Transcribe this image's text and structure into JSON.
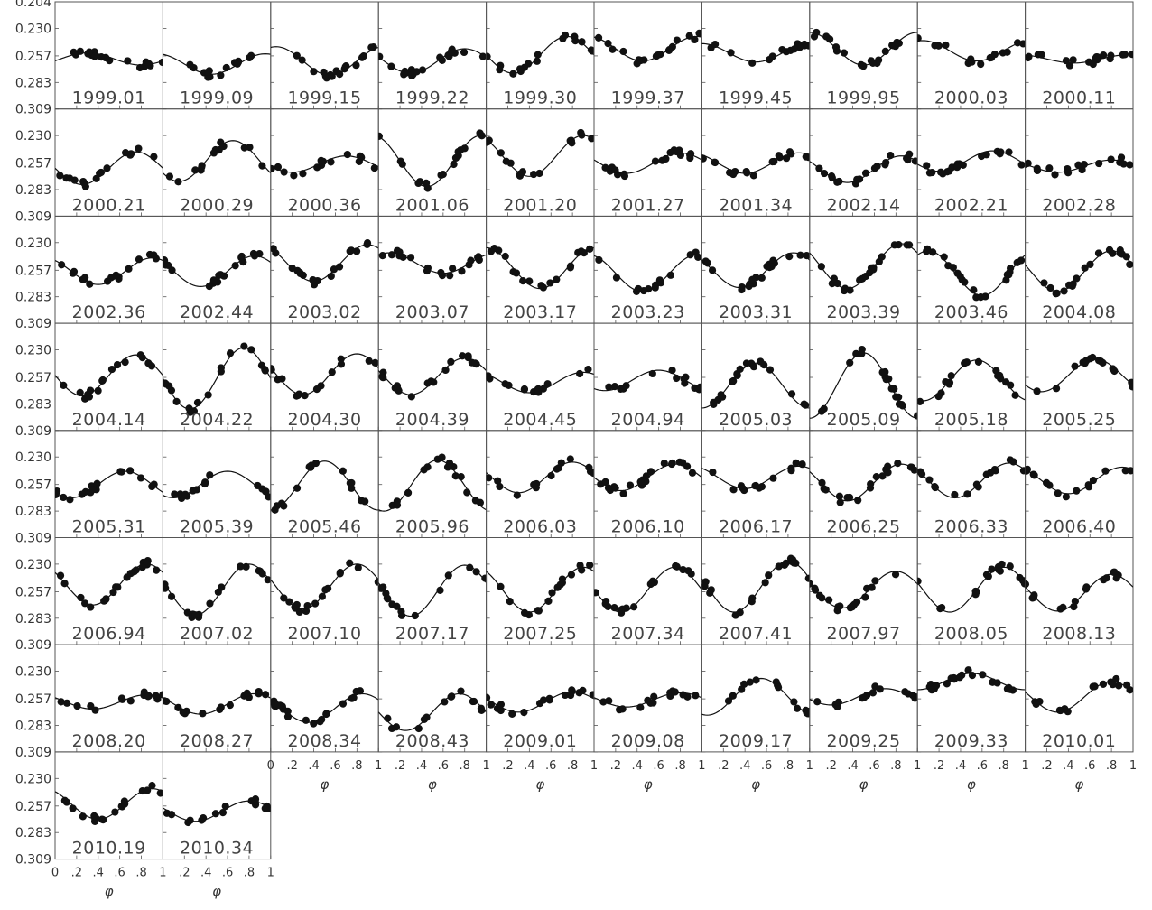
{
  "chart_data": {
    "type": "scatter",
    "layout": {
      "rows": 8,
      "columns": 10
    },
    "xlabel": "φ",
    "xlim": [
      0,
      1
    ],
    "ylim": [
      0.309,
      0.204
    ],
    "y_inverted": true,
    "y_ticks": [
      "0.204",
      "0.230",
      "0.257",
      "0.283",
      "0.309"
    ],
    "x_ticks": [
      "0",
      ".2",
      ".4",
      ".6",
      ".8",
      "1"
    ],
    "marker": "filled-circle",
    "fit_curve": "solid-line",
    "epochs": [
      "1999.01",
      "1999.09",
      "1999.15",
      "1999.22",
      "1999.30",
      "1999.37",
      "1999.45",
      "1999.95",
      "2000.03",
      "2000.11",
      "2000.21",
      "2000.29",
      "2000.36",
      "2001.06",
      "2001.20",
      "2001.27",
      "2001.34",
      "2002.14",
      "2002.21",
      "2002.28",
      "2002.36",
      "2002.44",
      "2003.02",
      "2003.07",
      "2003.17",
      "2003.23",
      "2003.31",
      "2003.39",
      "2003.46",
      "2004.08",
      "2004.14",
      "2004.22",
      "2004.30",
      "2004.39",
      "2004.45",
      "2004.94",
      "2005.03",
      "2005.09",
      "2005.18",
      "2005.25",
      "2005.31",
      "2005.39",
      "2005.46",
      "2005.96",
      "2006.03",
      "2006.10",
      "2006.17",
      "2006.25",
      "2006.33",
      "2006.40",
      "2006.94",
      "2007.02",
      "2007.10",
      "2007.17",
      "2007.25",
      "2007.34",
      "2007.41",
      "2007.97",
      "2008.05",
      "2008.13",
      "2008.20",
      "2008.27",
      "2008.34",
      "2008.43",
      "2009.01",
      "2009.08",
      "2009.17",
      "2009.25",
      "2009.33",
      "2010.01",
      "2010.19",
      "2010.34"
    ],
    "curves": [
      [
        0.26,
        0.006,
        0.8
      ],
      [
        0.265,
        0.01,
        0.45
      ],
      [
        0.262,
        0.014,
        0.55
      ],
      [
        0.262,
        0.012,
        0.3
      ],
      [
        0.256,
        0.018,
        0.25
      ],
      [
        0.25,
        0.012,
        0.45
      ],
      [
        0.254,
        0.009,
        0.5
      ],
      [
        0.25,
        0.016,
        0.5
      ],
      [
        0.252,
        0.01,
        0.55
      ],
      [
        0.26,
        0.004,
        0.45
      ],
      [
        0.262,
        0.016,
        0.25
      ],
      [
        0.255,
        0.02,
        0.15
      ],
      [
        0.258,
        0.008,
        0.2
      ],
      [
        0.255,
        0.025,
        0.45
      ],
      [
        0.25,
        0.02,
        0.4
      ],
      [
        0.257,
        0.01,
        0.3
      ],
      [
        0.257,
        0.01,
        0.4
      ],
      [
        0.263,
        0.013,
        0.35
      ],
      [
        0.255,
        0.01,
        0.2
      ],
      [
        0.26,
        0.006,
        0.3
      ],
      [
        0.258,
        0.013,
        0.4
      ],
      [
        0.258,
        0.015,
        0.35
      ],
      [
        0.25,
        0.018,
        0.4
      ],
      [
        0.25,
        0.01,
        0.6
      ],
      [
        0.255,
        0.02,
        0.5
      ],
      [
        0.26,
        0.018,
        0.45
      ],
      [
        0.257,
        0.017,
        0.35
      ],
      [
        0.253,
        0.022,
        0.35
      ],
      [
        0.26,
        0.022,
        0.6
      ],
      [
        0.258,
        0.02,
        0.3
      ],
      [
        0.255,
        0.02,
        0.25
      ],
      [
        0.258,
        0.03,
        0.25
      ],
      [
        0.254,
        0.02,
        0.3
      ],
      [
        0.256,
        0.018,
        0.3
      ],
      [
        0.262,
        0.01,
        0.4
      ],
      [
        0.26,
        0.01,
        0.1
      ],
      [
        0.265,
        0.022,
        0.0
      ],
      [
        0.265,
        0.032,
        0.0
      ],
      [
        0.26,
        0.02,
        0.05
      ],
      [
        0.255,
        0.016,
        0.15
      ],
      [
        0.257,
        0.013,
        0.15
      ],
      [
        0.257,
        0.013,
        0.1
      ],
      [
        0.258,
        0.024,
        0.0
      ],
      [
        0.258,
        0.025,
        0.05
      ],
      [
        0.25,
        0.015,
        0.3
      ],
      [
        0.25,
        0.013,
        0.25
      ],
      [
        0.25,
        0.011,
        0.4
      ],
      [
        0.255,
        0.018,
        0.35
      ],
      [
        0.253,
        0.017,
        0.35
      ],
      [
        0.253,
        0.013,
        0.4
      ],
      [
        0.25,
        0.02,
        0.35
      ],
      [
        0.255,
        0.025,
        0.3
      ],
      [
        0.252,
        0.022,
        0.3
      ],
      [
        0.256,
        0.025,
        0.3
      ],
      [
        0.255,
        0.022,
        0.4
      ],
      [
        0.255,
        0.022,
        0.25
      ],
      [
        0.252,
        0.025,
        0.3
      ],
      [
        0.255,
        0.018,
        0.3
      ],
      [
        0.255,
        0.022,
        0.3
      ],
      [
        0.258,
        0.018,
        0.3
      ],
      [
        0.26,
        0.007,
        0.35
      ],
      [
        0.262,
        0.01,
        0.35
      ],
      [
        0.266,
        0.014,
        0.35
      ],
      [
        0.27,
        0.018,
        0.25
      ],
      [
        0.26,
        0.01,
        0.3
      ],
      [
        0.258,
        0.007,
        0.3
      ],
      [
        0.255,
        0.018,
        0.05
      ],
      [
        0.255,
        0.008,
        0.2
      ],
      [
        0.24,
        0.008,
        0.0
      ],
      [
        0.255,
        0.015,
        0.3
      ],
      [
        0.255,
        0.015,
        0.4
      ],
      [
        0.262,
        0.01,
        0.3
      ]
    ]
  }
}
